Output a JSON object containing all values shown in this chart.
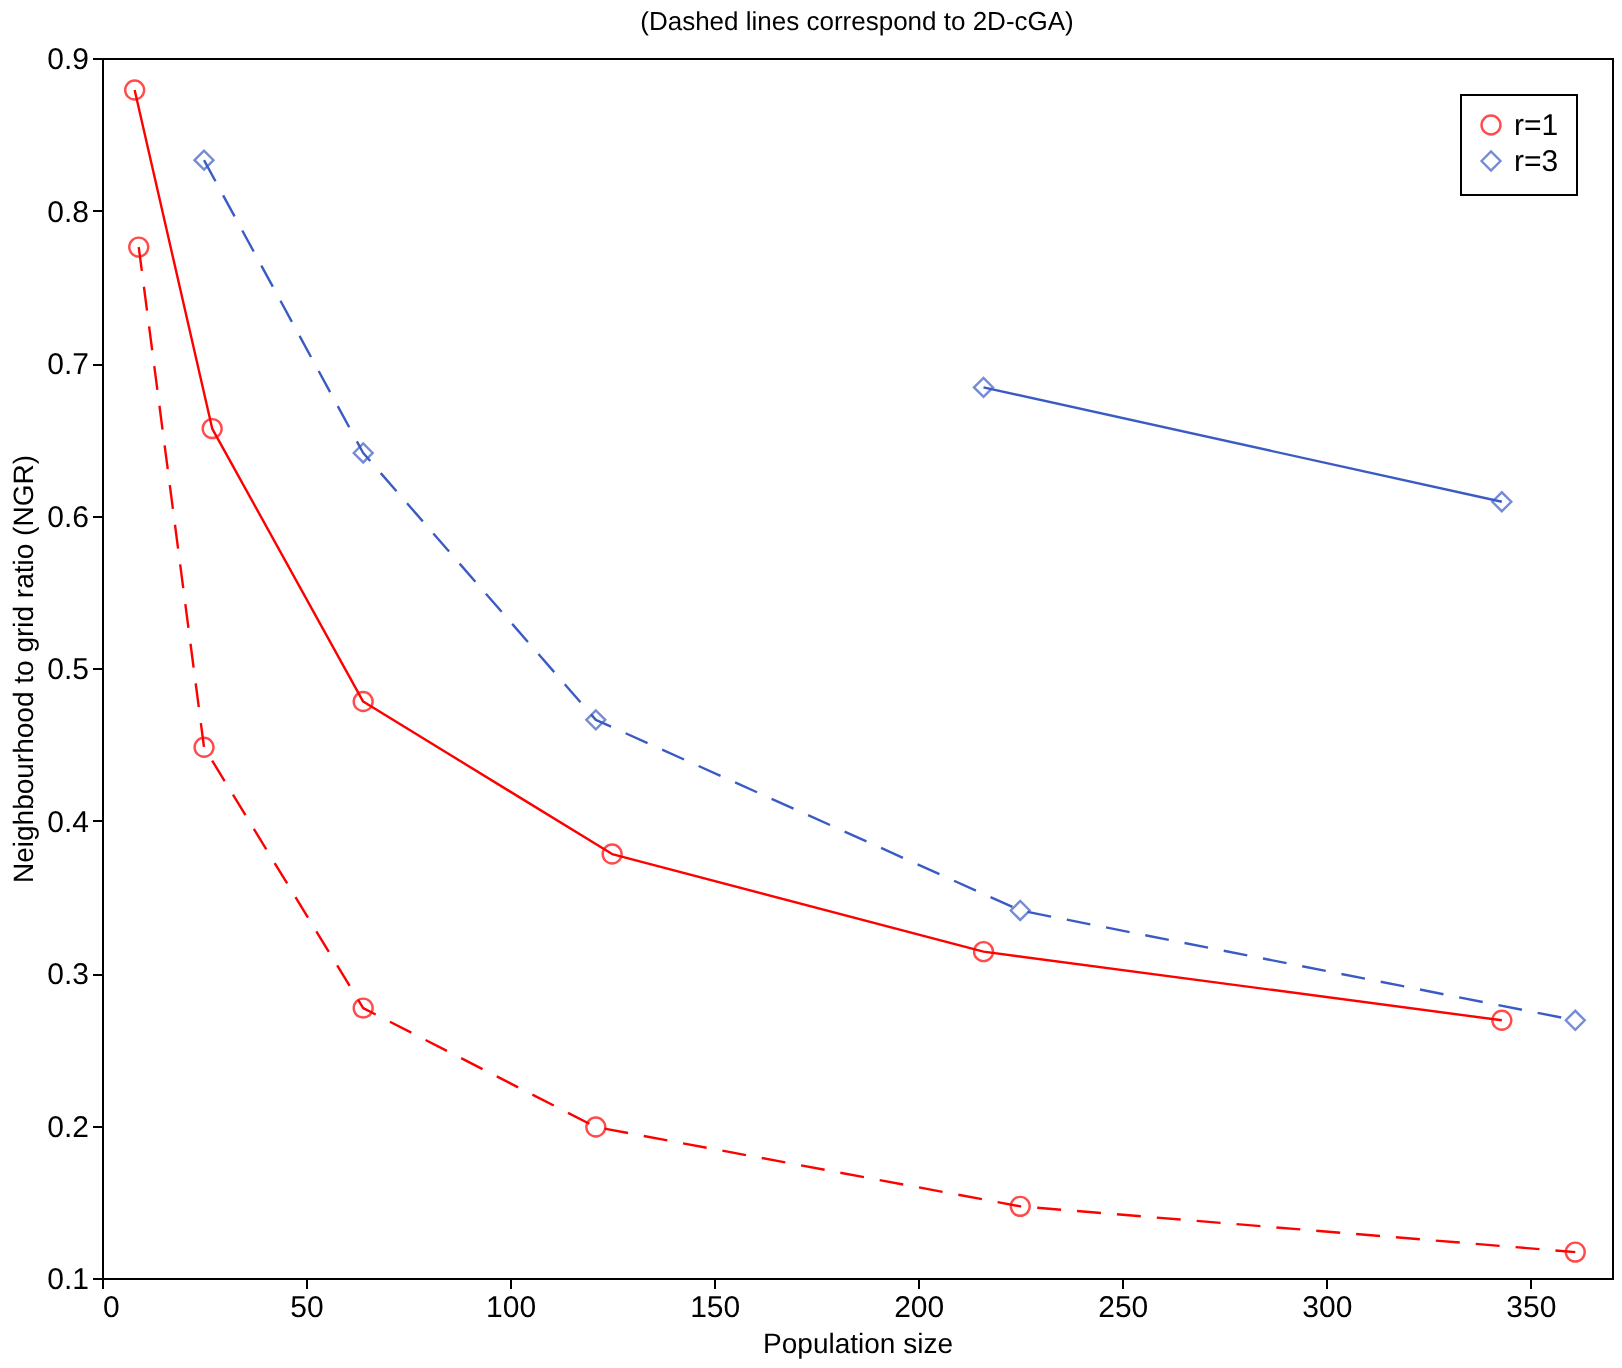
{
  "chart_data": {
    "type": "line",
    "title": "(Dashed lines correspond to 2D-cGA)",
    "xlabel": "Population size",
    "ylabel": "Neighbourhood to grid ratio (NGR)",
    "xlim": [
      0,
      370
    ],
    "xticks": [
      0,
      50,
      100,
      150,
      200,
      250,
      300,
      350
    ],
    "ylim": [
      0.1,
      0.9
    ],
    "yticks": [
      0.1,
      0.2,
      0.3,
      0.4,
      0.5,
      0.6,
      0.7,
      0.8,
      0.9
    ],
    "grid": false,
    "legend": "top right",
    "series": [
      {
        "name": "r=1",
        "color": "#ff0000",
        "marker": "circle",
        "line_style": "solid",
        "x": [
          8,
          27,
          64,
          125,
          216,
          343
        ],
        "values": [
          0.879,
          0.657,
          0.478,
          0.378,
          0.314,
          0.269
        ]
      },
      {
        "name": "r=3",
        "color": "#3b5bc4",
        "marker": "diamond",
        "line_style": "solid",
        "x": [
          216,
          343
        ],
        "values": [
          0.684,
          0.609
        ]
      },
      {
        "color": "#ff0000",
        "marker": "circle",
        "line_style": "dashed",
        "x": [
          9,
          25,
          64,
          121,
          225,
          361
        ],
        "values": [
          0.776,
          0.448,
          0.277,
          0.199,
          0.147,
          0.117
        ]
      },
      {
        "color": "#3b5bc4",
        "marker": "diamond",
        "line_style": "dashed",
        "x": [
          25,
          64,
          121,
          225,
          361
        ],
        "values": [
          0.833,
          0.641,
          0.466,
          0.341,
          0.269
        ]
      }
    ]
  }
}
